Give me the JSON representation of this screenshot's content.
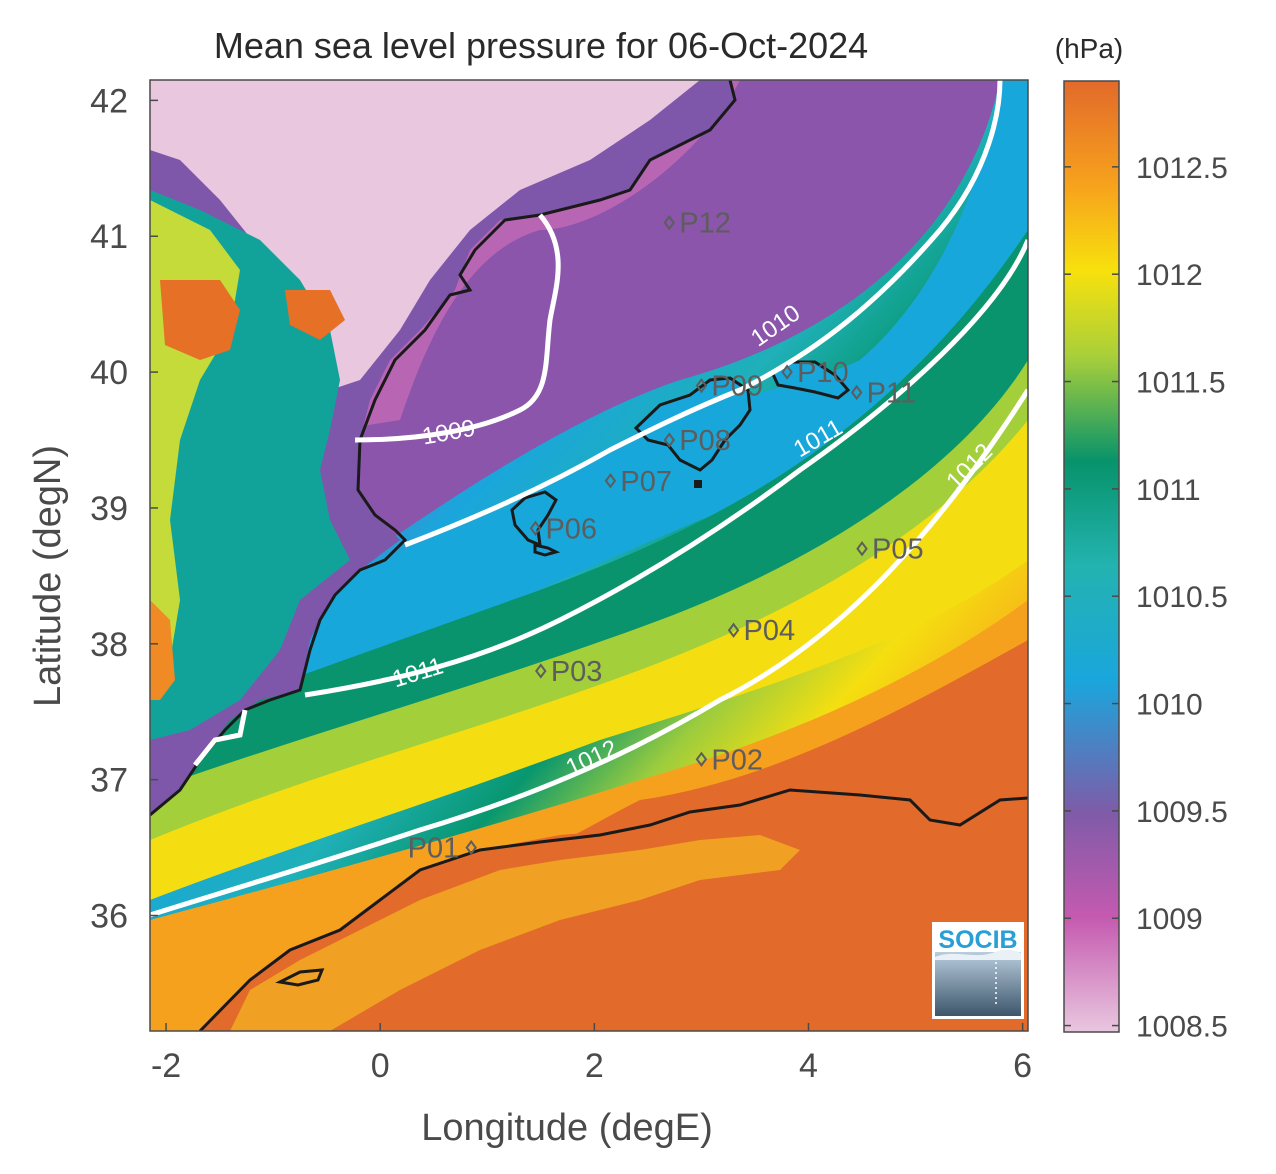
{
  "title": "Mean sea level pressure for 06-Oct-2024",
  "x_axis": {
    "label": "Longitude (degE)",
    "ticks": [
      "-2",
      "0",
      "2",
      "4",
      "6"
    ],
    "range": [
      -2.15,
      6.05
    ]
  },
  "y_axis": {
    "label": "Latitude (degN)",
    "ticks": [
      "36",
      "37",
      "38",
      "39",
      "40",
      "41",
      "42"
    ],
    "range": [
      35.15,
      42.15
    ]
  },
  "colorbar": {
    "unit": "(hPa)",
    "ticks": [
      "1008.5",
      "1009",
      "1009.5",
      "1010",
      "1010.5",
      "1011",
      "1011.5",
      "1012",
      "1012.5"
    ],
    "range": [
      1008.47,
      1012.9
    ],
    "colors": [
      "#e9c7df",
      "#c55ab0",
      "#7f5ba8",
      "#1aa6dc",
      "#23b3b0",
      "#07936b",
      "#a8cf3a",
      "#f7e10d",
      "#f7a21d",
      "#e26a2a"
    ]
  },
  "contours": [
    {
      "label": "1009"
    },
    {
      "label": "1010"
    },
    {
      "label": "1011"
    },
    {
      "label": "1011"
    },
    {
      "label": "1012"
    },
    {
      "label": "1012"
    }
  ],
  "stations": [
    {
      "id": "P01",
      "lon": 0.85,
      "lat": 36.5
    },
    {
      "id": "P02",
      "lon": 3.0,
      "lat": 37.15
    },
    {
      "id": "P03",
      "lon": 1.5,
      "lat": 37.8
    },
    {
      "id": "P04",
      "lon": 3.3,
      "lat": 38.1
    },
    {
      "id": "P05",
      "lon": 4.5,
      "lat": 38.7
    },
    {
      "id": "P06",
      "lon": 1.45,
      "lat": 38.85
    },
    {
      "id": "P07",
      "lon": 2.15,
      "lat": 39.2
    },
    {
      "id": "P08",
      "lon": 2.7,
      "lat": 39.5
    },
    {
      "id": "P09",
      "lon": 3.0,
      "lat": 39.9
    },
    {
      "id": "P10",
      "lon": 3.8,
      "lat": 40.0
    },
    {
      "id": "P11",
      "lon": 4.45,
      "lat": 39.85
    },
    {
      "id": "P12",
      "lon": 2.7,
      "lat": 41.1
    }
  ],
  "logo": {
    "text": "SOCIB"
  }
}
